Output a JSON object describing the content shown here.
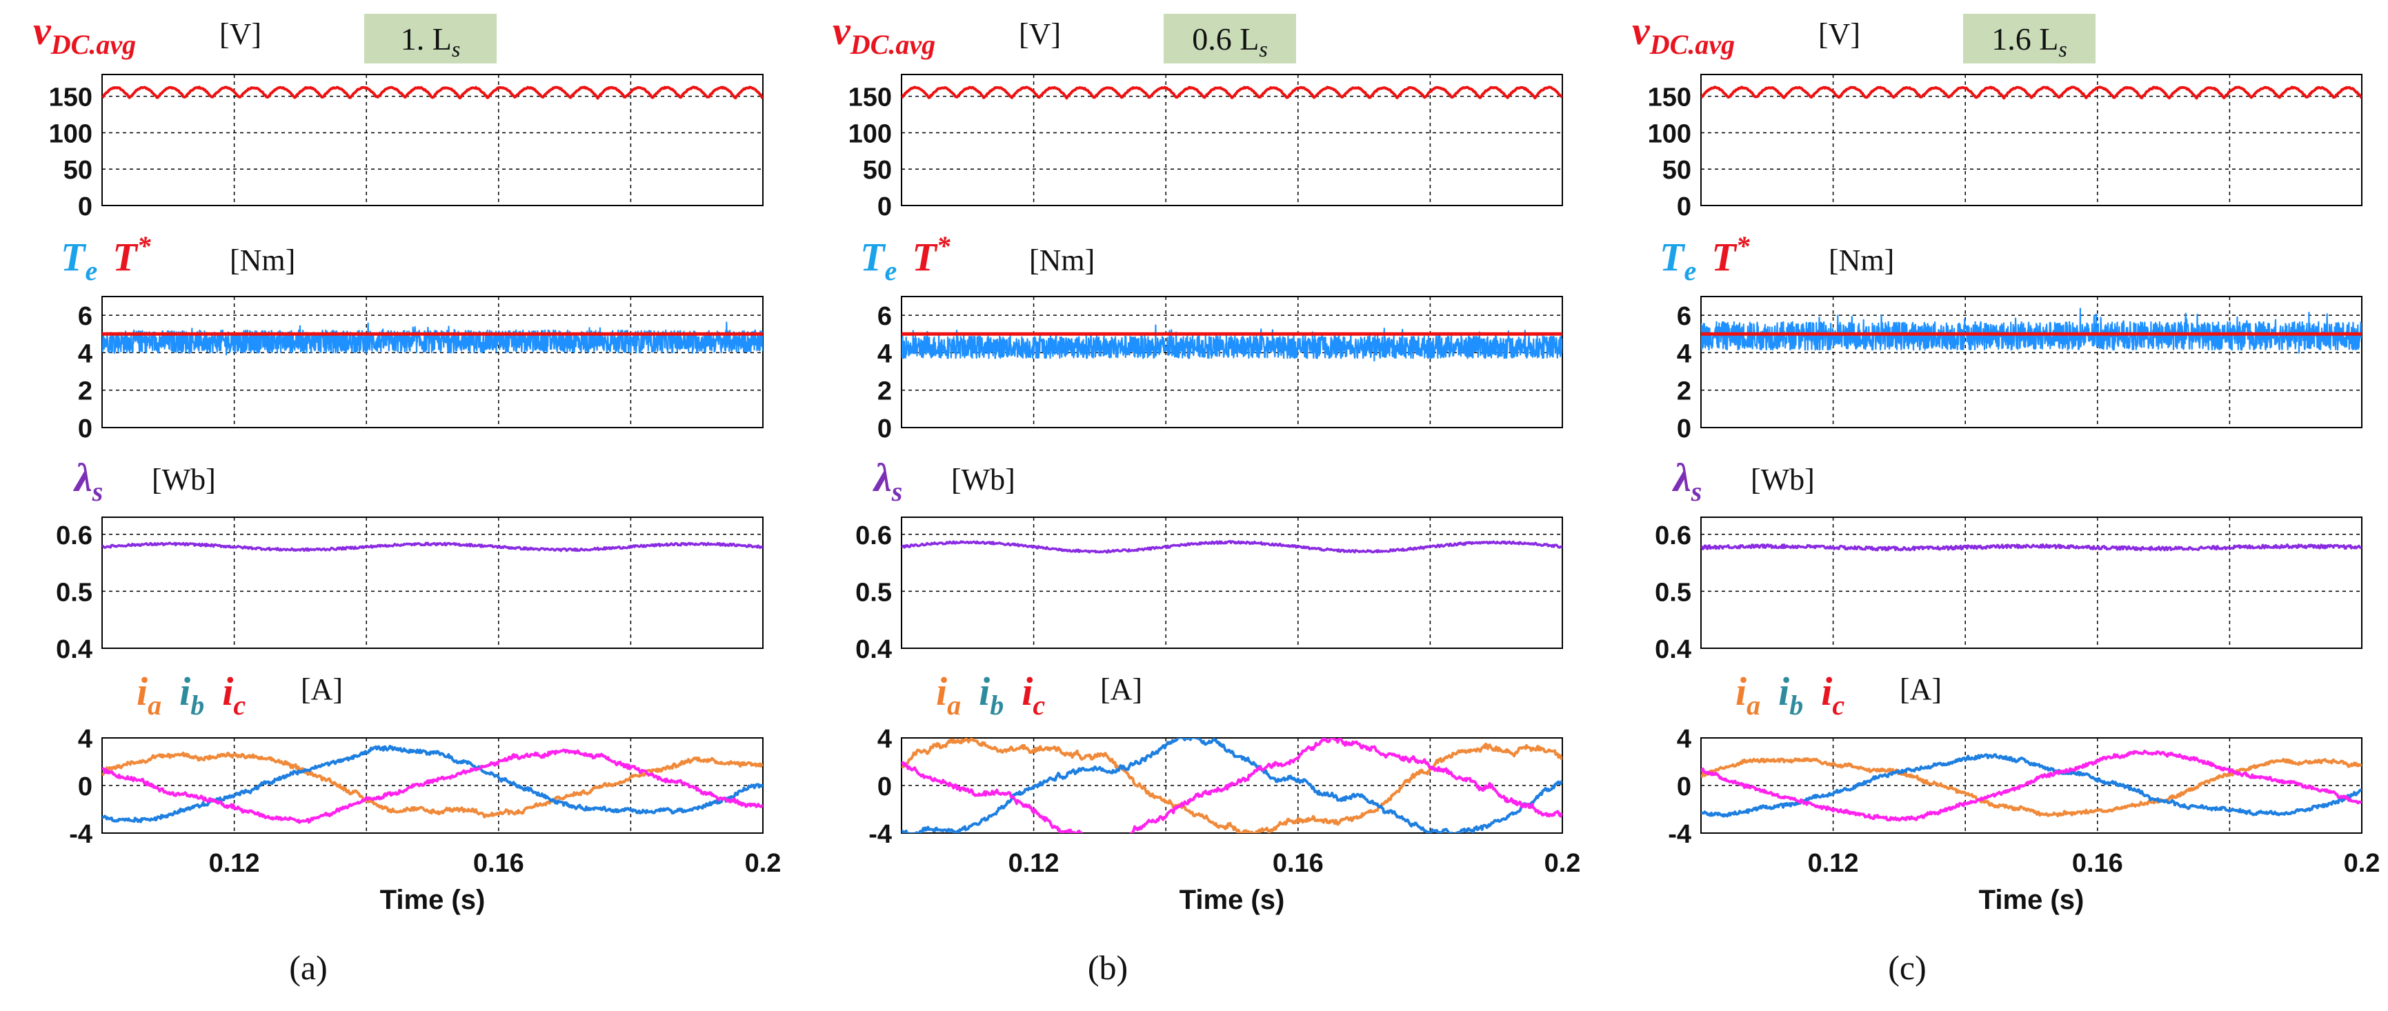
{
  "figure": {
    "sublabels": [
      "(a)",
      "(b)",
      "(c)"
    ],
    "badges": [
      "1. L",
      "0.6 L",
      "1.6 L"
    ],
    "badge_subscript": "s",
    "badge_color": "#c9dbb7",
    "panel_labels": {
      "vdc": {
        "main": "v",
        "sub": "DC.avg",
        "unit": "[V]",
        "color": "#e8141f"
      },
      "torque": {
        "te_main": "T",
        "te_sub": "e",
        "tstar_main": "T",
        "tstar_sup": "*",
        "unit": "[Nm]",
        "te_color": "#1aa3ea",
        "tstar_color": "#e8141f"
      },
      "flux": {
        "main": "λ",
        "sub": "s",
        "unit": "[Wb]",
        "color": "#7b2fb5"
      },
      "current": {
        "ia": "i",
        "ia_sub": "a",
        "ib": "i",
        "ib_sub": "b",
        "ic": "i",
        "ic_sub": "c",
        "unit": "[A]",
        "ia_color": "#f07f2e",
        "ib_color": "#2e8b9e",
        "ic_color": "#e8141f"
      }
    },
    "x_axis": {
      "label": "Time (s)",
      "range": [
        0.1,
        0.2
      ],
      "tick_labels": [
        "0.12",
        "0.16",
        "0.2"
      ]
    },
    "colors": {
      "vdc": "#ee1111",
      "te": "#1e90ff",
      "tstar": "#ee1111",
      "flux": "#8a2be2",
      "ia": "#f08a3a",
      "ib": "#1e7fe0",
      "ic": "#ff22ee"
    }
  },
  "chart_data": [
    {
      "type": "line",
      "title": "1. Ls",
      "sublabel": "(a)",
      "subplots": [
        {
          "name": "v_DC.avg",
          "ylabel": "[V]",
          "ylim": [
            0,
            180
          ],
          "yticks": [
            "0",
            "50",
            "100",
            "150"
          ],
          "series": [
            {
              "name": "v_DC.avg",
              "mean": 155,
              "ripple_amplitude": 7,
              "ripple_cycles": 24
            }
          ]
        },
        {
          "name": "torque",
          "ylabel": "[Nm]",
          "ylim": [
            0,
            7
          ],
          "yticks": [
            "0",
            "2",
            "4",
            "6"
          ],
          "series": [
            {
              "name": "T_e",
              "mean": 4.6,
              "noise_band": 0.6
            },
            {
              "name": "T*",
              "value": 5.0
            }
          ]
        },
        {
          "name": "lambda_s",
          "ylabel": "[Wb]",
          "ylim": [
            0.4,
            0.63
          ],
          "yticks": [
            "0.4",
            "0.5",
            "0.6"
          ],
          "series": [
            {
              "name": "lambda_s",
              "mean": 0.578,
              "ripple_amplitude": 0.005,
              "noise": 0.002
            }
          ]
        },
        {
          "name": "currents",
          "ylabel": "[A]",
          "ylim": [
            -4,
            4
          ],
          "yticks": [
            "-4",
            "0",
            "4"
          ],
          "series": [
            {
              "name": "i_a",
              "amplitude": 2.6,
              "frequency_hz": 12.5,
              "phase_deg": 20,
              "distortion": 0.25
            },
            {
              "name": "i_b",
              "amplitude": 2.6,
              "frequency_hz": 12.5,
              "phase_deg": -100,
              "distortion": 0.25
            },
            {
              "name": "i_c",
              "amplitude": 2.6,
              "frequency_hz": 12.5,
              "phase_deg": 140,
              "distortion": 0.25
            }
          ]
        }
      ]
    },
    {
      "type": "line",
      "title": "0.6 Ls",
      "sublabel": "(b)",
      "subplots": [
        {
          "name": "v_DC.avg",
          "ylabel": "[V]",
          "ylim": [
            0,
            180
          ],
          "yticks": [
            "0",
            "50",
            "100",
            "150"
          ],
          "series": [
            {
              "name": "v_DC.avg",
              "mean": 155,
              "ripple_amplitude": 7,
              "ripple_cycles": 24
            }
          ]
        },
        {
          "name": "torque",
          "ylabel": "[Nm]",
          "ylim": [
            0,
            7
          ],
          "yticks": [
            "0",
            "2",
            "4",
            "6"
          ],
          "series": [
            {
              "name": "T_e",
              "mean": 4.3,
              "noise_band": 0.6
            },
            {
              "name": "T*",
              "value": 5.0
            }
          ]
        },
        {
          "name": "lambda_s",
          "ylabel": "[Wb]",
          "ylim": [
            0.4,
            0.63
          ],
          "yticks": [
            "0.4",
            "0.5",
            "0.6"
          ],
          "series": [
            {
              "name": "lambda_s",
              "mean": 0.578,
              "ripple_amplitude": 0.008,
              "noise": 0.002
            }
          ]
        },
        {
          "name": "currents",
          "ylabel": "[A]",
          "ylim": [
            -4,
            4
          ],
          "yticks": [
            "-4",
            "0",
            "4"
          ],
          "series": [
            {
              "name": "i_a",
              "amplitude": 3.8,
              "frequency_hz": 12.5,
              "phase_deg": 20,
              "distortion": 0.6
            },
            {
              "name": "i_b",
              "amplitude": 3.8,
              "frequency_hz": 12.5,
              "phase_deg": -100,
              "distortion": 0.6
            },
            {
              "name": "i_c",
              "amplitude": 3.8,
              "frequency_hz": 12.5,
              "phase_deg": 140,
              "distortion": 0.6
            }
          ]
        }
      ]
    },
    {
      "type": "line",
      "title": "1.6 Ls",
      "sublabel": "(c)",
      "subplots": [
        {
          "name": "v_DC.avg",
          "ylabel": "[V]",
          "ylim": [
            0,
            180
          ],
          "yticks": [
            "0",
            "50",
            "100",
            "150"
          ],
          "series": [
            {
              "name": "v_DC.avg",
              "mean": 155,
              "ripple_amplitude": 7,
              "ripple_cycles": 24
            }
          ]
        },
        {
          "name": "torque",
          "ylabel": "[Nm]",
          "ylim": [
            0,
            7
          ],
          "yticks": [
            "0",
            "2",
            "4",
            "6"
          ],
          "series": [
            {
              "name": "T_e",
              "mean": 4.9,
              "noise_band": 0.75
            },
            {
              "name": "T*",
              "value": 5.0
            }
          ]
        },
        {
          "name": "lambda_s",
          "ylabel": "[Wb]",
          "ylim": [
            0.4,
            0.63
          ],
          "yticks": [
            "0.4",
            "0.5",
            "0.6"
          ],
          "series": [
            {
              "name": "lambda_s",
              "mean": 0.577,
              "ripple_amplitude": 0.002,
              "noise": 0.003
            }
          ]
        },
        {
          "name": "currents",
          "ylabel": "[A]",
          "ylim": [
            -4,
            4
          ],
          "yticks": [
            "-4",
            "0",
            "4"
          ],
          "series": [
            {
              "name": "i_a",
              "amplitude": 2.3,
              "frequency_hz": 12.5,
              "phase_deg": 20,
              "distortion": 0.1
            },
            {
              "name": "i_b",
              "amplitude": 2.3,
              "frequency_hz": 12.5,
              "phase_deg": -100,
              "distortion": 0.1
            },
            {
              "name": "i_c",
              "amplitude": 2.3,
              "frequency_hz": 12.5,
              "phase_deg": 140,
              "distortion": 0.1
            }
          ]
        }
      ]
    }
  ]
}
